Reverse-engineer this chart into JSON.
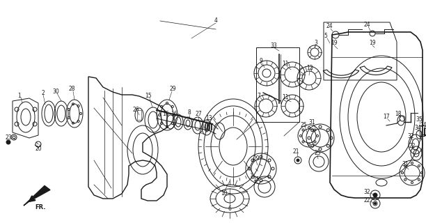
{
  "bg_color": "#ffffff",
  "line_color": "#1a1a1a",
  "fig_width": 6.12,
  "fig_height": 3.2,
  "dpi": 100,
  "lw": 0.7
}
